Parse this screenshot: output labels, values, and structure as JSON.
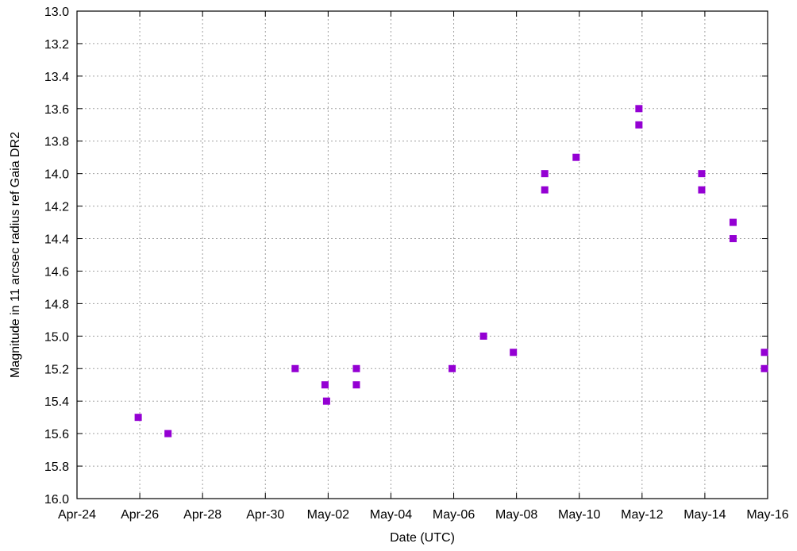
{
  "chart_data": {
    "type": "scatter",
    "title": "",
    "xlabel": "Date (UTC)",
    "ylabel": "Magnitude in 11 arcsec radius ref Gaia DR2",
    "x_axis": {
      "type": "date",
      "range": [
        "Apr-24",
        "May-16"
      ],
      "tick_labels": [
        "Apr-24",
        "Apr-26",
        "Apr-28",
        "Apr-30",
        "May-02",
        "May-04",
        "May-06",
        "May-08",
        "May-10",
        "May-12",
        "May-14",
        "May-16"
      ]
    },
    "y_axis": {
      "range": [
        13.0,
        16.0
      ],
      "inverted": true,
      "tick_labels": [
        "13.0",
        "13.2",
        "13.4",
        "13.6",
        "13.8",
        "14.0",
        "14.2",
        "14.4",
        "14.6",
        "14.8",
        "15.0",
        "15.2",
        "15.4",
        "15.6",
        "15.8",
        "16.0"
      ]
    },
    "grid": true,
    "marker": "square",
    "marker_color": "#9400D3",
    "series": [
      {
        "points": [
          {
            "x": "Apr-25.95",
            "y": 15.5
          },
          {
            "x": "Apr-26.9",
            "y": 15.6
          },
          {
            "x": "Apr-30.95",
            "y": 15.2
          },
          {
            "x": "May-01.9",
            "y": 15.3
          },
          {
            "x": "May-01.95",
            "y": 15.4
          },
          {
            "x": "May-02.9",
            "y": 15.2
          },
          {
            "x": "May-02.9",
            "y": 15.3
          },
          {
            "x": "May-05.95",
            "y": 15.2
          },
          {
            "x": "May-06.95",
            "y": 15.0
          },
          {
            "x": "May-07.9",
            "y": 15.1
          },
          {
            "x": "May-08.9",
            "y": 14.0
          },
          {
            "x": "May-08.9",
            "y": 14.1
          },
          {
            "x": "May-09.9",
            "y": 13.9
          },
          {
            "x": "May-11.9",
            "y": 13.6
          },
          {
            "x": "May-11.9",
            "y": 13.7
          },
          {
            "x": "May-13.9",
            "y": 14.0
          },
          {
            "x": "May-13.9",
            "y": 14.1
          },
          {
            "x": "May-14.9",
            "y": 14.3
          },
          {
            "x": "May-14.9",
            "y": 14.4
          },
          {
            "x": "May-15.9",
            "y": 15.1
          },
          {
            "x": "May-15.9",
            "y": 15.2
          }
        ]
      }
    ]
  }
}
